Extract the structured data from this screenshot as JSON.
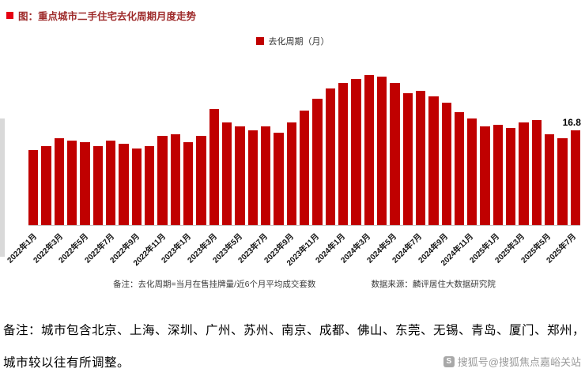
{
  "header": {
    "title": "图：重点城市二手住宅去化周期月度走势"
  },
  "legend": {
    "label": "去化周期（月）"
  },
  "footnote": {
    "note": "备注：去化周期=当月在售挂牌量/近6个月平均成交套数",
    "source": "数据来源：麟评居住大数据研究院"
  },
  "article_notes": {
    "line1": "备注：城市包含北京、上海、深圳、广州、苏州、南京、成都、佛山、东莞、无锡、青岛、厦门、郑州，",
    "line2": "城市较以往有所调整。"
  },
  "watermark": {
    "icon_glyph": "S",
    "text": "搜狐号@搜狐焦点嘉峪关站"
  },
  "colors": {
    "bar": "#c00000",
    "title_bullet": "#e60012",
    "title_text": "#9e2b2b"
  },
  "chart_data": {
    "type": "bar",
    "title": "图：重点城市二手住宅去化周期月度走势",
    "legend": [
      "去化周期（月）"
    ],
    "legend_position": "top-center",
    "bar_color": "#c00000",
    "grid": false,
    "ylim": [
      0,
      28
    ],
    "x_tick_interval": 2,
    "categories": [
      "2022年1月",
      "2022年2月",
      "2022年3月",
      "2022年4月",
      "2022年5月",
      "2022年6月",
      "2022年7月",
      "2022年8月",
      "2022年9月",
      "2022年10月",
      "2022年11月",
      "2022年12月",
      "2023年1月",
      "2023年2月",
      "2023年3月",
      "2023年4月",
      "2023年5月",
      "2023年6月",
      "2023年7月",
      "2023年8月",
      "2023年9月",
      "2023年10月",
      "2023年11月",
      "2023年12月",
      "2024年1月",
      "2024年2月",
      "2024年3月",
      "2024年4月",
      "2024年5月",
      "2024年6月",
      "2024年7月",
      "2024年8月",
      "2024年9月",
      "2024年10月",
      "2024年11月",
      "2024年12月",
      "2025年1月",
      "2025年2月",
      "2025年3月",
      "2025年4月",
      "2025年5月",
      "2025年6月",
      "2025年7月"
    ],
    "values": [
      13.3,
      14.0,
      15.4,
      15.0,
      14.7,
      14.0,
      15.0,
      14.4,
      13.6,
      14.0,
      15.8,
      16.1,
      14.7,
      15.8,
      20.6,
      18.2,
      17.5,
      16.8,
      17.5,
      16.4,
      18.2,
      20.3,
      22.4,
      24.2,
      25.2,
      25.9,
      26.6,
      26.3,
      25.2,
      23.4,
      23.8,
      22.8,
      21.7,
      20.0,
      18.9,
      17.5,
      17.8,
      17.2,
      18.2,
      18.6,
      16.1,
      15.4,
      16.8
    ],
    "highlight_label": {
      "category": "2025年7月",
      "value": 16.8,
      "text": "16.8"
    },
    "note": "备注：去化周期=当月在售挂牌量/近6个月平均成交套数",
    "source": "数据来源：麟评居住大数据研究院"
  }
}
